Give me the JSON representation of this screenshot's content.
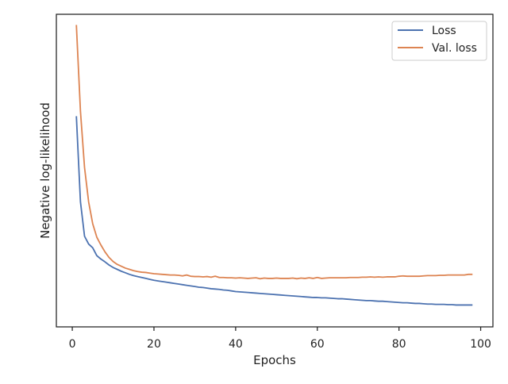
{
  "chart_data": {
    "type": "line",
    "title": "",
    "xlabel": "Epochs",
    "ylabel": "Negative log-likelihood",
    "xlim": [
      -3.9,
      103
    ],
    "ylim": [
      0,
      1
    ],
    "xticks": [
      0,
      20,
      40,
      60,
      80,
      100
    ],
    "ytick_labels_shown": false,
    "grid": false,
    "legend_position": "top-right",
    "series": [
      {
        "name": "Loss",
        "color": "#4c72b0",
        "x": [
          1,
          2,
          3,
          4,
          5,
          6,
          7,
          8,
          9,
          10,
          11,
          12,
          13,
          14,
          15,
          16,
          17,
          18,
          19,
          20,
          21,
          22,
          23,
          24,
          25,
          26,
          27,
          28,
          29,
          30,
          31,
          32,
          33,
          34,
          35,
          36,
          37,
          38,
          39,
          40,
          41,
          42,
          43,
          44,
          45,
          46,
          47,
          48,
          49,
          50,
          51,
          52,
          53,
          54,
          55,
          56,
          57,
          58,
          59,
          60,
          61,
          62,
          63,
          64,
          65,
          66,
          67,
          68,
          69,
          70,
          71,
          72,
          73,
          74,
          75,
          76,
          77,
          78,
          79,
          80,
          81,
          82,
          83,
          84,
          85,
          86,
          87,
          88,
          89,
          90,
          91,
          92,
          93,
          94,
          95,
          96,
          97,
          98
        ],
        "y": [
          0.674,
          0.4,
          0.29,
          0.265,
          0.253,
          0.228,
          0.217,
          0.208,
          0.198,
          0.19,
          0.184,
          0.178,
          0.173,
          0.168,
          0.164,
          0.161,
          0.158,
          0.155,
          0.152,
          0.149,
          0.147,
          0.145,
          0.143,
          0.141,
          0.139,
          0.137,
          0.135,
          0.133,
          0.131,
          0.129,
          0.127,
          0.126,
          0.124,
          0.122,
          0.121,
          0.12,
          0.118,
          0.117,
          0.115,
          0.113,
          0.112,
          0.111,
          0.11,
          0.109,
          0.108,
          0.107,
          0.106,
          0.105,
          0.104,
          0.103,
          0.102,
          0.101,
          0.1,
          0.099,
          0.098,
          0.097,
          0.096,
          0.095,
          0.094,
          0.094,
          0.093,
          0.093,
          0.092,
          0.091,
          0.09,
          0.09,
          0.089,
          0.088,
          0.087,
          0.086,
          0.085,
          0.084,
          0.084,
          0.083,
          0.082,
          0.082,
          0.081,
          0.08,
          0.079,
          0.078,
          0.077,
          0.077,
          0.076,
          0.075,
          0.075,
          0.074,
          0.073,
          0.073,
          0.072,
          0.072,
          0.072,
          0.071,
          0.071,
          0.07,
          0.07,
          0.07,
          0.07,
          0.07
        ]
      },
      {
        "name": "Val. loss",
        "color": "#dd8452",
        "x": [
          1,
          2,
          3,
          4,
          5,
          6,
          7,
          8,
          9,
          10,
          11,
          12,
          13,
          14,
          15,
          16,
          17,
          18,
          19,
          20,
          21,
          22,
          23,
          24,
          25,
          26,
          27,
          28,
          29,
          30,
          31,
          32,
          33,
          34,
          35,
          36,
          37,
          38,
          39,
          40,
          41,
          42,
          43,
          44,
          45,
          46,
          47,
          48,
          49,
          50,
          51,
          52,
          53,
          54,
          55,
          56,
          57,
          58,
          59,
          60,
          61,
          62,
          63,
          64,
          65,
          66,
          67,
          68,
          69,
          70,
          71,
          72,
          73,
          74,
          75,
          76,
          77,
          78,
          79,
          80,
          81,
          82,
          83,
          84,
          85,
          86,
          87,
          88,
          89,
          90,
          91,
          92,
          93,
          94,
          95,
          96,
          97,
          98
        ],
        "y": [
          0.966,
          0.69,
          0.51,
          0.4,
          0.33,
          0.287,
          0.262,
          0.24,
          0.222,
          0.209,
          0.2,
          0.194,
          0.188,
          0.184,
          0.18,
          0.177,
          0.175,
          0.174,
          0.172,
          0.17,
          0.169,
          0.168,
          0.167,
          0.166,
          0.166,
          0.165,
          0.163,
          0.166,
          0.162,
          0.161,
          0.161,
          0.16,
          0.161,
          0.159,
          0.162,
          0.158,
          0.158,
          0.157,
          0.157,
          0.156,
          0.157,
          0.156,
          0.155,
          0.156,
          0.157,
          0.154,
          0.156,
          0.155,
          0.155,
          0.156,
          0.155,
          0.155,
          0.155,
          0.156,
          0.154,
          0.156,
          0.155,
          0.157,
          0.155,
          0.158,
          0.155,
          0.156,
          0.157,
          0.157,
          0.157,
          0.157,
          0.157,
          0.158,
          0.158,
          0.158,
          0.159,
          0.159,
          0.16,
          0.159,
          0.16,
          0.159,
          0.16,
          0.16,
          0.16,
          0.162,
          0.163,
          0.162,
          0.162,
          0.162,
          0.162,
          0.163,
          0.164,
          0.164,
          0.164,
          0.165,
          0.165,
          0.166,
          0.166,
          0.166,
          0.166,
          0.166,
          0.168,
          0.168
        ]
      }
    ]
  }
}
